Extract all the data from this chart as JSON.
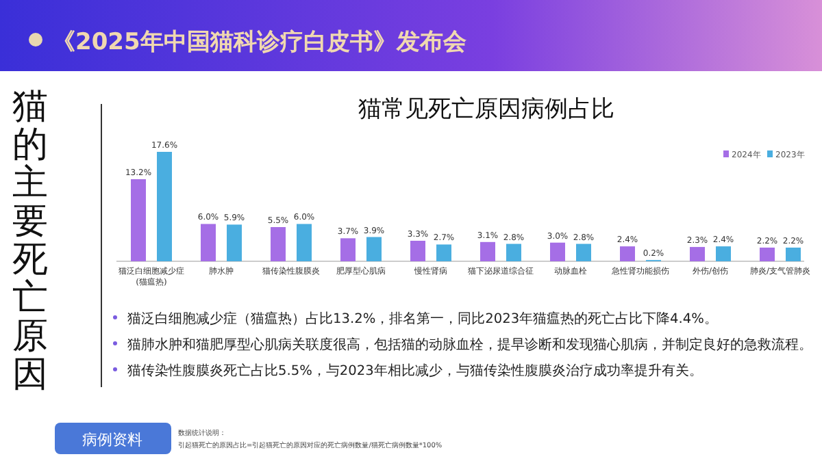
{
  "chart_data": {
    "type": "bar",
    "title": "猫常见死亡原因病例占比",
    "subtitle": "《2025年中国猫科诊疗白皮书》发布会",
    "ylabel": "猫的主要死亡原因",
    "categories": [
      "猫泛白细胞减少症(猫瘟热)",
      "肺水肿",
      "猫传染性腹膜炎",
      "肥厚型心肌病",
      "慢性肾病",
      "猫下泌尿道综合征",
      "动脉血栓",
      "急性肾功能损伤",
      "外伤/创伤",
      "肺炎/支气管肺炎"
    ],
    "series": [
      {
        "name": "2024年",
        "color": "#a56ee6",
        "values": [
          13.2,
          6.0,
          5.5,
          3.7,
          3.3,
          3.1,
          3.0,
          2.4,
          2.3,
          2.2
        ],
        "value_labels": [
          "13.2%",
          "6.0%",
          "5.5%",
          "3.7%",
          "3.3%",
          "3.1%",
          "3.0%",
          "2.4%",
          "2.3%",
          "2.2%"
        ]
      },
      {
        "name": "2023年",
        "color": "#4aaee0",
        "values": [
          17.6,
          5.9,
          6.0,
          3.9,
          2.7,
          2.8,
          2.8,
          0.2,
          2.4,
          2.2
        ],
        "value_labels": [
          "17.6%",
          "5.9%",
          "6.0%",
          "3.9%",
          "2.7%",
          "2.8%",
          "2.8%",
          "0.2%",
          "2.4%",
          "2.2%"
        ]
      }
    ],
    "legend": "top right",
    "annotations": [
      "猫泛白细胞减少症（猫瘟热）占比13.2%，排名第一，同比2023年猫瘟热的死亡占比下降4.4%。",
      "猫肺水肿和猫肥厚型心肌病关联度很高，包括猫的动脉血栓，提早诊断和发现猫心肌病，并制定良好的急救流程。",
      "猫传染性腹膜炎死亡占比5.5%，与2023年相比减少，与猫传染性腹膜炎治疗成功率提升有关。",
      "病例资料",
      "数据统计说明：",
      "引起猫死亡的原因占比=引起猫死亡的原因对应的死亡病例数量/猫死亡病例数量*100%"
    ]
  }
}
